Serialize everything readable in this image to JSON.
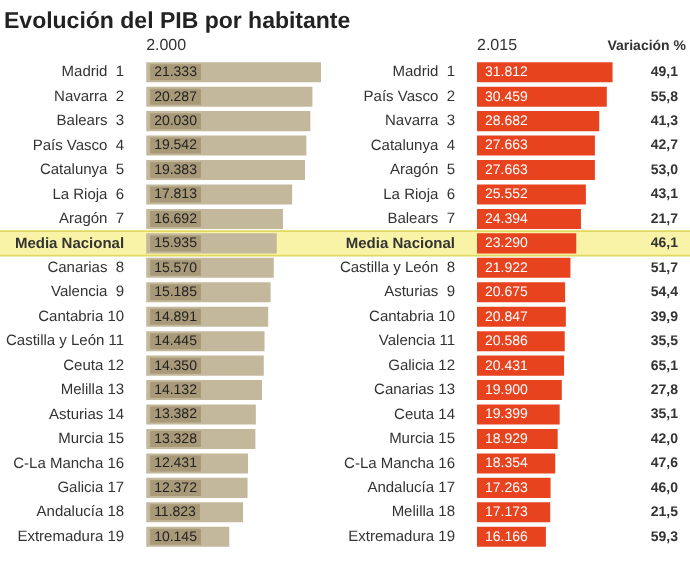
{
  "chart_data": [
    {
      "type": "bar",
      "orientation": "horizontal",
      "title": "Evolución del PIB por habitante",
      "subtitle": "2.000",
      "categories": [
        "Madrid  1",
        "Navarra  2",
        "Balears  3",
        "País Vasco  4",
        "Catalunya  5",
        "La Rioja  6",
        "Aragón  7",
        "Media Nacional",
        "Canarias  8",
        "Valencia  9",
        "Cantabria 10",
        "Castilla y León 11",
        "Ceuta 12",
        "Melilla 13",
        "Asturias 14",
        "Murcia 15",
        "C-La Mancha 16",
        "Galicia 17",
        "Andalucía 18",
        "Extremadura 19"
      ],
      "values": [
        21333,
        20287,
        20030,
        19542,
        19383,
        17813,
        16692,
        15935,
        15570,
        15185,
        14891,
        14445,
        14350,
        14132,
        13382,
        13328,
        12431,
        12372,
        11823,
        10145
      ],
      "value_labels": [
        "21.333",
        "20.287",
        "20.030",
        "19.542",
        "19.383",
        "17.813",
        "16.692",
        "15.935",
        "15.570",
        "15.185",
        "14.891",
        "14.445",
        "14.350",
        "14.132",
        "13.382",
        "13.328",
        "12.431",
        "12.372",
        "11.823",
        "10.145"
      ],
      "color": "#c4b89c",
      "tick_labels": "y",
      "legend": false,
      "bands": [
        {
          "axis": "y",
          "from": "Media Nacional",
          "to": "Media Nacional",
          "color": "#f8f3a6"
        }
      ]
    },
    {
      "type": "bar",
      "orientation": "horizontal",
      "subtitle": "2.015",
      "categories": [
        "Madrid  1",
        "País Vasco  2",
        "Navarra  3",
        "Catalunya  4",
        "Aragón  5",
        "La Rioja  6",
        "Balears  7",
        "Media Nacional",
        "Castilla y León  8",
        "Asturias  9",
        "Cantabria 10",
        "Valencia 11",
        "Galicia 12",
        "Canarias 13",
        "Ceuta 14",
        "Murcia 15",
        "C-La Mancha 16",
        "Andalucía 17",
        "Melilla 18",
        "Extremadura 19"
      ],
      "values": [
        31812,
        30459,
        28682,
        27663,
        27663,
        25552,
        24394,
        23290,
        21922,
        20675,
        20847,
        20586,
        20431,
        19900,
        19399,
        18929,
        18354,
        17263,
        17173,
        16166
      ],
      "value_labels": [
        "31.812",
        "30.459",
        "28.682",
        "27.663",
        "27.663",
        "25.552",
        "24.394",
        "23.290",
        "21.922",
        "20.675",
        "20.847",
        "20.586",
        "20.431",
        "19.900",
        "19.399",
        "18.929",
        "18.354",
        "17.263",
        "17.173",
        "16.166"
      ],
      "color": "#e8431f",
      "tick_labels": "y",
      "legend": false,
      "bands": [
        {
          "axis": "y",
          "from": "Media Nacional",
          "to": "Media Nacional",
          "color": "#f8f3a6"
        }
      ],
      "annotations": [
        "Variación %",
        "49,1",
        "55,8",
        "41,3",
        "42,7",
        "53,0",
        "43,1",
        "21,7",
        "46,1",
        "51,7",
        "54,4",
        "39,9",
        "35,5",
        "65,1",
        "27,8",
        "35,1",
        "42,0",
        "47,6",
        "46,0",
        "21,5",
        "59,3"
      ]
    }
  ]
}
